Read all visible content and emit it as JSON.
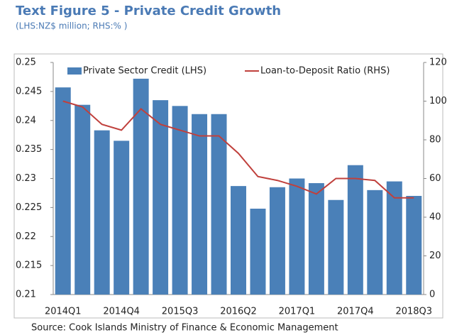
{
  "chart_data": {
    "type": "bar_line",
    "title": "Text Figure 5 - Private Credit Growth",
    "subtitle": "(LHS:NZ$ million; RHS:% )",
    "source": "Source: Cook Islands Ministry of Finance & Economic Management",
    "categories": [
      "2014Q1",
      null,
      null,
      "2014Q4",
      null,
      null,
      "2015Q3",
      null,
      null,
      "2016Q2",
      null,
      null,
      "2017Q1",
      null,
      null,
      "2017Q4",
      null,
      null,
      "2018Q3"
    ],
    "series": [
      {
        "name": "Private Sector Credit (LHS)",
        "type": "bar",
        "color": "#4a80b8",
        "axis": "y",
        "values": [
          0.2457,
          0.2427,
          0.2383,
          0.2365,
          0.2472,
          0.2435,
          0.2425,
          0.2411,
          0.2411,
          0.2287,
          0.2248,
          0.2285,
          0.23,
          0.2292,
          0.2263,
          0.2323,
          0.228,
          0.2295,
          0.227
        ]
      },
      {
        "name": "Loan-to-Deposit Ratio (RHS)",
        "type": "line",
        "color": "#c0403c",
        "axis": "y2",
        "values": [
          100,
          97,
          88,
          85,
          96,
          88,
          85,
          82,
          82,
          73,
          61,
          59,
          56,
          52,
          60,
          60,
          59,
          50,
          50
        ]
      }
    ],
    "ylim": [
      0.21,
      0.25
    ],
    "yticks": [
      0.21,
      0.215,
      0.22,
      0.225,
      0.23,
      0.235,
      0.24,
      0.245,
      0.25
    ],
    "y2lim": [
      0,
      120
    ],
    "y2ticks": [
      0,
      20,
      40,
      60,
      80,
      100,
      120
    ],
    "legend": "top"
  }
}
